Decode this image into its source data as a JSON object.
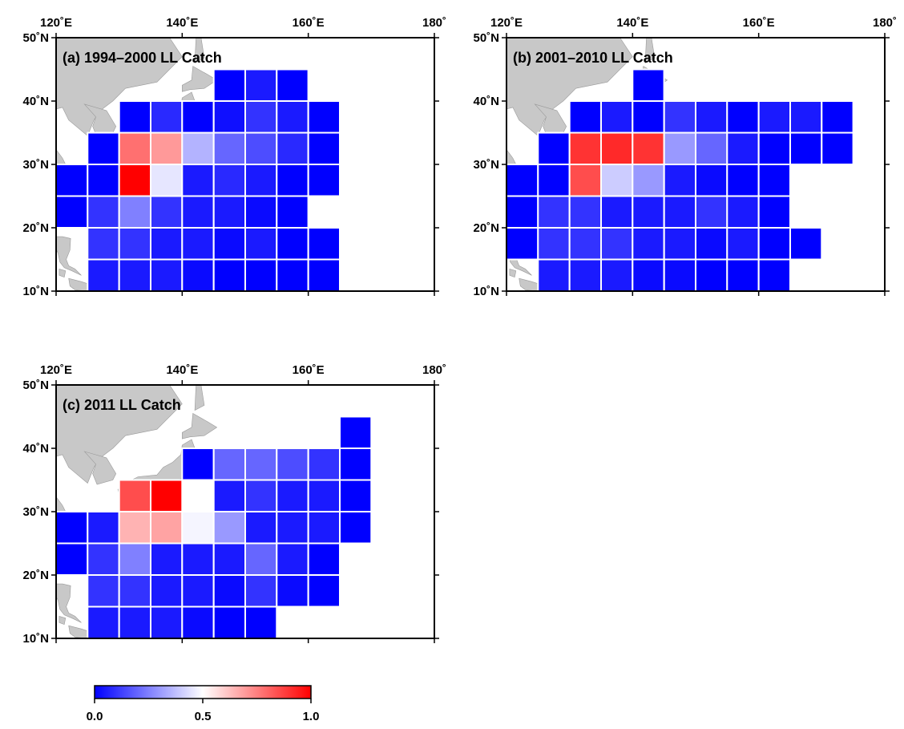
{
  "colorbar": {
    "ticks": [
      "0.0",
      "0.5",
      "1.0"
    ],
    "stops": [
      "#0000ff",
      "#ffffff",
      "#ff0000"
    ]
  },
  "lon_ticks": [
    "120˚E",
    "140˚E",
    "160˚E",
    "180˚"
  ],
  "lat_ticks": [
    "50˚N",
    "40˚N",
    "30˚N",
    "20˚N",
    "10˚N"
  ],
  "colors": {
    "land": "#c8c8c8",
    "grid_line": "#ffffff",
    "frame": "#000000"
  },
  "panels": [
    {
      "title": "(a) 1994–2000 LL Catch",
      "cells": [
        {
          "lon": 145,
          "lat": 40,
          "v": 0.0
        },
        {
          "lon": 150,
          "lat": 40,
          "v": 0.05
        },
        {
          "lon": 155,
          "lat": 40,
          "v": 0.0
        },
        {
          "lon": 130,
          "lat": 35,
          "v": 0.0
        },
        {
          "lon": 135,
          "lat": 35,
          "v": 0.08
        },
        {
          "lon": 140,
          "lat": 35,
          "v": 0.0
        },
        {
          "lon": 145,
          "lat": 35,
          "v": 0.03
        },
        {
          "lon": 150,
          "lat": 35,
          "v": 0.1
        },
        {
          "lon": 155,
          "lat": 35,
          "v": 0.05
        },
        {
          "lon": 160,
          "lat": 35,
          "v": 0.0
        },
        {
          "lon": 125,
          "lat": 30,
          "v": 0.0
        },
        {
          "lon": 130,
          "lat": 30,
          "v": 0.78
        },
        {
          "lon": 135,
          "lat": 30,
          "v": 0.7
        },
        {
          "lon": 140,
          "lat": 30,
          "v": 0.35
        },
        {
          "lon": 145,
          "lat": 30,
          "v": 0.2
        },
        {
          "lon": 150,
          "lat": 30,
          "v": 0.15
        },
        {
          "lon": 155,
          "lat": 30,
          "v": 0.08
        },
        {
          "lon": 160,
          "lat": 30,
          "v": 0.0
        },
        {
          "lon": 120,
          "lat": 25,
          "v": 0.0
        },
        {
          "lon": 125,
          "lat": 25,
          "v": 0.0
        },
        {
          "lon": 130,
          "lat": 25,
          "v": 1.0
        },
        {
          "lon": 135,
          "lat": 25,
          "v": 0.45
        },
        {
          "lon": 140,
          "lat": 25,
          "v": 0.05
        },
        {
          "lon": 145,
          "lat": 25,
          "v": 0.08
        },
        {
          "lon": 150,
          "lat": 25,
          "v": 0.05
        },
        {
          "lon": 155,
          "lat": 25,
          "v": 0.0
        },
        {
          "lon": 160,
          "lat": 25,
          "v": 0.0
        },
        {
          "lon": 120,
          "lat": 20,
          "v": 0.0
        },
        {
          "lon": 125,
          "lat": 20,
          "v": 0.1
        },
        {
          "lon": 130,
          "lat": 20,
          "v": 0.25
        },
        {
          "lon": 135,
          "lat": 20,
          "v": 0.1
        },
        {
          "lon": 140,
          "lat": 20,
          "v": 0.05
        },
        {
          "lon": 145,
          "lat": 20,
          "v": 0.05
        },
        {
          "lon": 150,
          "lat": 20,
          "v": 0.02
        },
        {
          "lon": 155,
          "lat": 20,
          "v": 0.0
        },
        {
          "lon": 125,
          "lat": 15,
          "v": 0.1
        },
        {
          "lon": 130,
          "lat": 15,
          "v": 0.1
        },
        {
          "lon": 135,
          "lat": 15,
          "v": 0.05
        },
        {
          "lon": 140,
          "lat": 15,
          "v": 0.05
        },
        {
          "lon": 145,
          "lat": 15,
          "v": 0.02
        },
        {
          "lon": 150,
          "lat": 15,
          "v": 0.05
        },
        {
          "lon": 155,
          "lat": 15,
          "v": 0.0
        },
        {
          "lon": 160,
          "lat": 15,
          "v": 0.0
        },
        {
          "lon": 125,
          "lat": 10,
          "v": 0.05
        },
        {
          "lon": 130,
          "lat": 10,
          "v": 0.05
        },
        {
          "lon": 135,
          "lat": 10,
          "v": 0.05
        },
        {
          "lon": 140,
          "lat": 10,
          "v": 0.02
        },
        {
          "lon": 145,
          "lat": 10,
          "v": 0.0
        },
        {
          "lon": 150,
          "lat": 10,
          "v": 0.0
        },
        {
          "lon": 155,
          "lat": 10,
          "v": 0.0
        },
        {
          "lon": 160,
          "lat": 10,
          "v": 0.0
        }
      ]
    },
    {
      "title": "(b) 2001–2010 LL Catch",
      "cells": [
        {
          "lon": 140,
          "lat": 40,
          "v": 0.0
        },
        {
          "lon": 130,
          "lat": 35,
          "v": 0.0
        },
        {
          "lon": 135,
          "lat": 35,
          "v": 0.05
        },
        {
          "lon": 140,
          "lat": 35,
          "v": 0.0
        },
        {
          "lon": 145,
          "lat": 35,
          "v": 0.1
        },
        {
          "lon": 150,
          "lat": 35,
          "v": 0.05
        },
        {
          "lon": 155,
          "lat": 35,
          "v": 0.0
        },
        {
          "lon": 160,
          "lat": 35,
          "v": 0.05
        },
        {
          "lon": 165,
          "lat": 35,
          "v": 0.05
        },
        {
          "lon": 170,
          "lat": 35,
          "v": 0.0
        },
        {
          "lon": 125,
          "lat": 30,
          "v": 0.0
        },
        {
          "lon": 130,
          "lat": 30,
          "v": 0.9
        },
        {
          "lon": 135,
          "lat": 30,
          "v": 0.92
        },
        {
          "lon": 140,
          "lat": 30,
          "v": 0.9
        },
        {
          "lon": 145,
          "lat": 30,
          "v": 0.3
        },
        {
          "lon": 150,
          "lat": 30,
          "v": 0.2
        },
        {
          "lon": 155,
          "lat": 30,
          "v": 0.05
        },
        {
          "lon": 160,
          "lat": 30,
          "v": 0.0
        },
        {
          "lon": 165,
          "lat": 30,
          "v": 0.0
        },
        {
          "lon": 170,
          "lat": 30,
          "v": 0.0
        },
        {
          "lon": 120,
          "lat": 25,
          "v": 0.0
        },
        {
          "lon": 125,
          "lat": 25,
          "v": 0.0
        },
        {
          "lon": 130,
          "lat": 25,
          "v": 0.85
        },
        {
          "lon": 135,
          "lat": 25,
          "v": 0.4
        },
        {
          "lon": 140,
          "lat": 25,
          "v": 0.3
        },
        {
          "lon": 145,
          "lat": 25,
          "v": 0.05
        },
        {
          "lon": 150,
          "lat": 25,
          "v": 0.02
        },
        {
          "lon": 155,
          "lat": 25,
          "v": 0.0
        },
        {
          "lon": 160,
          "lat": 25,
          "v": 0.0
        },
        {
          "lon": 120,
          "lat": 20,
          "v": 0.0
        },
        {
          "lon": 125,
          "lat": 20,
          "v": 0.1
        },
        {
          "lon": 130,
          "lat": 20,
          "v": 0.1
        },
        {
          "lon": 135,
          "lat": 20,
          "v": 0.05
        },
        {
          "lon": 140,
          "lat": 20,
          "v": 0.05
        },
        {
          "lon": 145,
          "lat": 20,
          "v": 0.05
        },
        {
          "lon": 150,
          "lat": 20,
          "v": 0.1
        },
        {
          "lon": 155,
          "lat": 20,
          "v": 0.05
        },
        {
          "lon": 160,
          "lat": 20,
          "v": 0.0
        },
        {
          "lon": 120,
          "lat": 15,
          "v": 0.0
        },
        {
          "lon": 125,
          "lat": 15,
          "v": 0.1
        },
        {
          "lon": 130,
          "lat": 15,
          "v": 0.1
        },
        {
          "lon": 135,
          "lat": 15,
          "v": 0.1
        },
        {
          "lon": 140,
          "lat": 15,
          "v": 0.05
        },
        {
          "lon": 145,
          "lat": 15,
          "v": 0.05
        },
        {
          "lon": 150,
          "lat": 15,
          "v": 0.02
        },
        {
          "lon": 155,
          "lat": 15,
          "v": 0.05
        },
        {
          "lon": 160,
          "lat": 15,
          "v": 0.0
        },
        {
          "lon": 165,
          "lat": 15,
          "v": 0.0
        },
        {
          "lon": 125,
          "lat": 10,
          "v": 0.05
        },
        {
          "lon": 130,
          "lat": 10,
          "v": 0.05
        },
        {
          "lon": 135,
          "lat": 10,
          "v": 0.05
        },
        {
          "lon": 140,
          "lat": 10,
          "v": 0.02
        },
        {
          "lon": 145,
          "lat": 10,
          "v": 0.02
        },
        {
          "lon": 150,
          "lat": 10,
          "v": 0.0
        },
        {
          "lon": 155,
          "lat": 10,
          "v": 0.0
        },
        {
          "lon": 160,
          "lat": 10,
          "v": 0.0
        }
      ]
    },
    {
      "title": "(c) 2011 LL Catch",
      "cells": [
        {
          "lon": 165,
          "lat": 40,
          "v": 0.0
        },
        {
          "lon": 140,
          "lat": 35,
          "v": 0.0
        },
        {
          "lon": 145,
          "lat": 35,
          "v": 0.2
        },
        {
          "lon": 150,
          "lat": 35,
          "v": 0.2
        },
        {
          "lon": 155,
          "lat": 35,
          "v": 0.15
        },
        {
          "lon": 160,
          "lat": 35,
          "v": 0.1
        },
        {
          "lon": 165,
          "lat": 35,
          "v": 0.0
        },
        {
          "lon": 130,
          "lat": 30,
          "v": 0.85
        },
        {
          "lon": 135,
          "lat": 30,
          "v": 1.0
        },
        {
          "lon": 145,
          "lat": 30,
          "v": 0.05
        },
        {
          "lon": 150,
          "lat": 30,
          "v": 0.1
        },
        {
          "lon": 155,
          "lat": 30,
          "v": 0.05
        },
        {
          "lon": 160,
          "lat": 30,
          "v": 0.05
        },
        {
          "lon": 165,
          "lat": 30,
          "v": 0.0
        },
        {
          "lon": 120,
          "lat": 25,
          "v": 0.0
        },
        {
          "lon": 125,
          "lat": 25,
          "v": 0.05
        },
        {
          "lon": 130,
          "lat": 25,
          "v": 0.65
        },
        {
          "lon": 135,
          "lat": 25,
          "v": 0.68
        },
        {
          "lon": 140,
          "lat": 25,
          "v": 0.48
        },
        {
          "lon": 145,
          "lat": 25,
          "v": 0.3
        },
        {
          "lon": 150,
          "lat": 25,
          "v": 0.05
        },
        {
          "lon": 155,
          "lat": 25,
          "v": 0.05
        },
        {
          "lon": 160,
          "lat": 25,
          "v": 0.05
        },
        {
          "lon": 165,
          "lat": 25,
          "v": 0.0
        },
        {
          "lon": 120,
          "lat": 20,
          "v": 0.0
        },
        {
          "lon": 125,
          "lat": 20,
          "v": 0.1
        },
        {
          "lon": 130,
          "lat": 20,
          "v": 0.25
        },
        {
          "lon": 135,
          "lat": 20,
          "v": 0.05
        },
        {
          "lon": 140,
          "lat": 20,
          "v": 0.05
        },
        {
          "lon": 145,
          "lat": 20,
          "v": 0.05
        },
        {
          "lon": 150,
          "lat": 20,
          "v": 0.2
        },
        {
          "lon": 155,
          "lat": 20,
          "v": 0.05
        },
        {
          "lon": 160,
          "lat": 20,
          "v": 0.0
        },
        {
          "lon": 125,
          "lat": 15,
          "v": 0.1
        },
        {
          "lon": 130,
          "lat": 15,
          "v": 0.1
        },
        {
          "lon": 135,
          "lat": 15,
          "v": 0.05
        },
        {
          "lon": 140,
          "lat": 15,
          "v": 0.05
        },
        {
          "lon": 145,
          "lat": 15,
          "v": 0.02
        },
        {
          "lon": 150,
          "lat": 15,
          "v": 0.1
        },
        {
          "lon": 155,
          "lat": 15,
          "v": 0.02
        },
        {
          "lon": 160,
          "lat": 15,
          "v": 0.0
        },
        {
          "lon": 125,
          "lat": 10,
          "v": 0.05
        },
        {
          "lon": 130,
          "lat": 10,
          "v": 0.05
        },
        {
          "lon": 135,
          "lat": 10,
          "v": 0.05
        },
        {
          "lon": 140,
          "lat": 10,
          "v": 0.02
        },
        {
          "lon": 145,
          "lat": 10,
          "v": 0.0
        },
        {
          "lon": 150,
          "lat": 10,
          "v": 0.0
        }
      ]
    }
  ]
}
